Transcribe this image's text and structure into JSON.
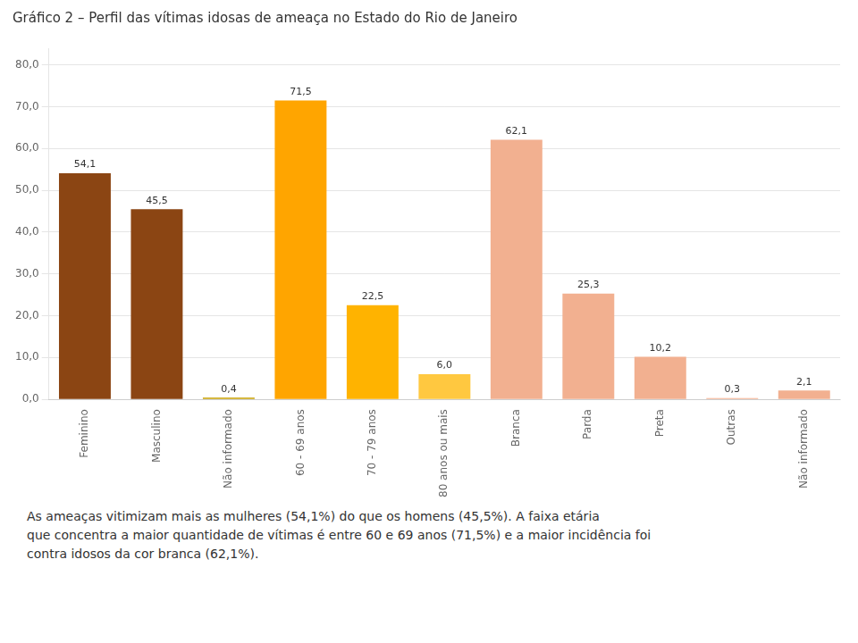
{
  "chart_data": {
    "type": "bar",
    "title": "Gráfico 2 – Perfil das vítimas idosas de ameaça no Estado do Rio de Janeiro",
    "categories": [
      "Feminino",
      "Masculino",
      "Não informado",
      "60 - 69 anos",
      "70 - 79 anos",
      "80 anos ou mais",
      "Branca",
      "Parda",
      "Preta",
      "Outras",
      "Não informado"
    ],
    "values": [
      54.1,
      45.5,
      0.4,
      71.5,
      22.5,
      6.0,
      62.1,
      25.3,
      10.2,
      0.3,
      2.1
    ],
    "value_labels": [
      "54,1",
      "45,5",
      "0,4",
      "71,5",
      "22,5",
      "6,0",
      "62,1",
      "25,3",
      "10,2",
      "0,3",
      "2,1"
    ],
    "colors": [
      "#8B4513",
      "#8B4513",
      "#C8A000",
      "#FFA500",
      "#FFB300",
      "#FFC840",
      "#F2B090",
      "#F2B090",
      "#F2B090",
      "#F2B090",
      "#F2B090"
    ],
    "data_labels": true,
    "ylim": [
      0,
      84
    ],
    "yticks": [
      {
        "value": 0,
        "label": "0,0"
      },
      {
        "value": 10,
        "label": "10,0"
      },
      {
        "value": 20,
        "label": "20,0"
      },
      {
        "value": 30,
        "label": "30,0"
      },
      {
        "value": 40,
        "label": "40,0"
      },
      {
        "value": 50,
        "label": "50,0"
      },
      {
        "value": 60,
        "label": "60,0"
      },
      {
        "value": 70,
        "label": "70,0"
      },
      {
        "value": 80,
        "label": "80,0"
      }
    ],
    "grid": true,
    "annotations": [
      "As ameaças vitimizam mais as mulheres (54,1%) do que os homens (45,5%). A faixa etária",
      "que concentra a maior quantidade de vítimas é entre 60 e 69 anos (71,5%) e a maior incidência foi",
      "contra idosos da cor branca (62,1%)."
    ]
  }
}
